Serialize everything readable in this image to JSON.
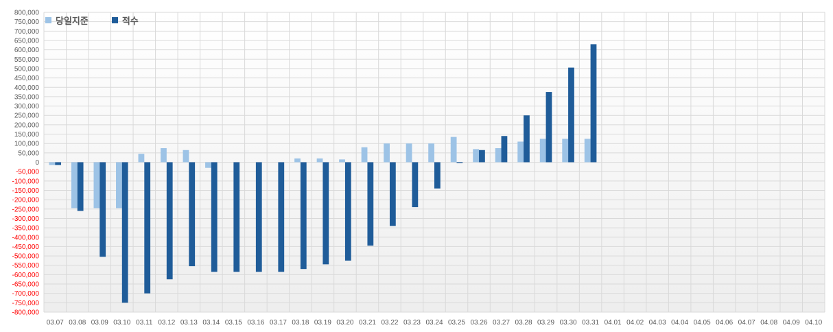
{
  "chart_data": {
    "type": "bar",
    "categories": [
      "03.07",
      "03.08",
      "03.09",
      "03.10",
      "03.11",
      "03.12",
      "03.13",
      "03.14",
      "03.15",
      "03.16",
      "03.17",
      "03.18",
      "03.19",
      "03.20",
      "03.21",
      "03.22",
      "03.23",
      "03.24",
      "03.25",
      "03.26",
      "03.27",
      "03.28",
      "03.29",
      "03.30",
      "03.31",
      "04.01",
      "04.02",
      "04.03",
      "04.04",
      "04.05",
      "04.06",
      "04.07",
      "04.08",
      "04.09",
      "04.10"
    ],
    "series": [
      {
        "name": "당일지준",
        "color": "#9dc3e6",
        "values": [
          -15000,
          -245000,
          -245000,
          -245000,
          45000,
          75000,
          65000,
          -30000,
          0,
          0,
          0,
          20000,
          20000,
          15000,
          80000,
          100000,
          100000,
          100000,
          135000,
          70000,
          75000,
          110000,
          125000,
          125000,
          125000,
          null,
          null,
          null,
          null,
          null,
          null,
          null,
          null,
          null,
          null
        ]
      },
      {
        "name": "적수",
        "color": "#1f5c99",
        "values": [
          -15000,
          -260000,
          -505000,
          -750000,
          -700000,
          -625000,
          -555000,
          -585000,
          -585000,
          -585000,
          -585000,
          -570000,
          -545000,
          -525000,
          -445000,
          -340000,
          -240000,
          -140000,
          -5000,
          65000,
          140000,
          250000,
          375000,
          505000,
          630000,
          null,
          null,
          null,
          null,
          null,
          null,
          null,
          null,
          null,
          null
        ]
      }
    ],
    "ylim": [
      -800000,
      800000
    ],
    "ytick_step": 50000,
    "ytick_labels": [
      "800,000",
      "750,000",
      "700,000",
      "650,000",
      "600,000",
      "550,000",
      "500,000",
      "450,000",
      "400,000",
      "350,000",
      "300,000",
      "250,000",
      "200,000",
      "150,000",
      "100,000",
      "50,000",
      "0",
      "-50,000",
      "-100,000",
      "-150,000",
      "-200,000",
      "-250,000",
      "-300,000",
      "-350,000",
      "-400,000",
      "-450,000",
      "-500,000",
      "-550,000",
      "-600,000",
      "-650,000",
      "-700,000",
      "-750,000",
      "-800,000"
    ],
    "negative_tick_color": "#ff0000",
    "grid": true,
    "legend": "top-left",
    "title": "",
    "xlabel": "",
    "ylabel": ""
  },
  "legend": {
    "items": [
      {
        "label": "당일지준",
        "color": "#9dc3e6"
      },
      {
        "label": "적수",
        "color": "#1f5c99"
      }
    ]
  }
}
